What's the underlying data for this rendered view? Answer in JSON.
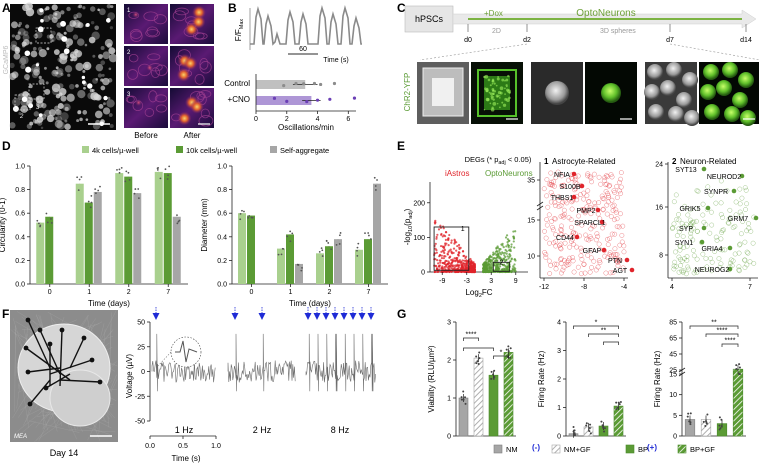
{
  "panels": {
    "A": {
      "letter": "A",
      "side_label": "GCaMP6",
      "roi_labels": [
        "1",
        "2",
        "3"
      ],
      "tile_numbers": [
        "1",
        "2",
        "3"
      ],
      "before_label": "Before",
      "after_label": "After"
    },
    "B": {
      "letter": "B",
      "ylabel": "F/F",
      "ylabel_sub": "Max",
      "time_tick": "60",
      "time_label": "Time (s)",
      "groups": [
        "Control",
        "+CNO"
      ],
      "group_means": [
        3.2,
        3.6
      ],
      "group_errors": [
        0.8,
        0.6
      ],
      "xticks": [
        "0",
        "2",
        "4",
        "6"
      ],
      "xlabel": "Oscillations/min",
      "colors": {
        "control": "#8c8c8c",
        "cno": "#6b3fb5",
        "trace": "#888888"
      }
    },
    "C": {
      "letter": "C",
      "timeline_start": "hPSCs",
      "dox": "+Dox",
      "title": "OptoNeurons",
      "phase_2d": "2D",
      "phase_3d": "3D spheres",
      "days": [
        "d0",
        "d2",
        "d7",
        "d14"
      ],
      "side_label": "ChR2-YFP",
      "accent": "#7cb342"
    },
    "D": {
      "letter": "D",
      "legend": [
        "4k cells/µ-well",
        "10k cells/µ-well",
        "Self-aggregate"
      ],
      "colors": [
        "#a9d08e",
        "#5b9b35",
        "#a6a6a6"
      ],
      "xlabel": "Time (days)",
      "days": [
        "0",
        "1",
        "2",
        "7"
      ]
    },
    "E": {
      "letter": "E",
      "title": "DEGs (* p",
      "title_sub": "adj",
      "title_end": " < 0.05)",
      "ylabel": "-log",
      "ylabel_sub": "10",
      "ylabel_end": "(p",
      "ylabel_sub2": "adj",
      "ylabel_end2": ")",
      "xlabel": "Log",
      "xlabel_sub": "2",
      "xlabel_end": "FC",
      "group_left": "iAstros",
      "group_right": "OptoNeurons",
      "xticks": [
        "-9",
        "-3",
        "3",
        "9"
      ],
      "yticks": [
        "0",
        "100",
        "200"
      ],
      "box_labels": [
        "1",
        "2"
      ],
      "astro_title": "Astrocyte-Related",
      "astro_num": "1",
      "astro_genes": [
        "NFIA",
        "S100B",
        "THBS1",
        "PMP2",
        "SPARCL1",
        "CD44",
        "GFAP",
        "PTN",
        "AGT"
      ],
      "astro_xticks": [
        "-12",
        "-8",
        "-4"
      ],
      "astro_yticks": [
        "10",
        "15",
        "35"
      ],
      "neuro_title": "Neuron-Related",
      "neuro_num": "2",
      "neuro_genes": [
        "SYT13",
        "NEUROD2",
        "SYNPR",
        "GRIK5",
        "GRM7",
        "SYP",
        "SYN1",
        "GRIA4",
        "NEUROG2"
      ],
      "neuro_xticks": [
        "4",
        "7"
      ],
      "neuro_yticks": [
        "8",
        "16",
        "24"
      ],
      "colors": {
        "astro": "#e0242b",
        "neuro": "#5b9b35"
      }
    },
    "F": {
      "letter": "F",
      "mea_label": "MEA",
      "day_label": "Day 14",
      "ylabel": "Voltage (µV)",
      "yticks": [
        "-50",
        "-25",
        "0",
        "25",
        "50"
      ],
      "time_ticks": [
        "0.0",
        "0.5",
        "1.0"
      ],
      "time_label": "Time (s)",
      "rates": [
        "1 Hz",
        "2 Hz",
        "8 Hz"
      ],
      "stim_color": "#1f2bd6"
    },
    "G": {
      "letter": "G",
      "viability": {
        "ylabel": "Viability (RLU/µm²)",
        "yticks": [
          "0",
          "1",
          "2",
          "3"
        ],
        "sig": [
          "****",
          "*"
        ]
      },
      "firing_minus": {
        "ylabel": "Firing Rate (Hz)",
        "sign": "(-)",
        "yticks": [
          "0",
          "1",
          "2",
          "3",
          "4"
        ],
        "sig": [
          "*",
          "**"
        ]
      },
      "firing_plus": {
        "ylabel": "Firing Rate (Hz)",
        "sign": "(+)",
        "yticks": [
          "0",
          "5",
          "10",
          "15",
          "25",
          "45",
          "65",
          "85"
        ],
        "sig": [
          "**",
          "****",
          "****"
        ]
      },
      "legend": [
        "NM",
        "NM+GF",
        "BP",
        "BP+GF"
      ]
    }
  },
  "chart_data": [
    {
      "type": "line",
      "id": "B-trace",
      "xlabel": "Time (s)",
      "ylabel": "F/F Max",
      "x_ticks": [
        "60"
      ]
    },
    {
      "type": "bar",
      "id": "B-oscillations",
      "categories": [
        "Control",
        "+CNO"
      ],
      "values": [
        3.2,
        3.6
      ],
      "errors": [
        0.8,
        0.6
      ],
      "xlabel": "Oscillations/min",
      "xlim": [
        0,
        6.5
      ]
    },
    {
      "type": "bar",
      "id": "D-circularity",
      "ylabel": "Circularity (0-1)",
      "xlabel": "Time (days)",
      "ylim": [
        0,
        1.0
      ],
      "categories": [
        "0",
        "1",
        "2",
        "7"
      ],
      "series": [
        {
          "name": "4k cells/µ-well",
          "values": [
            0.52,
            0.85,
            0.94,
            0.95
          ]
        },
        {
          "name": "10k cells/µ-well",
          "values": [
            0.57,
            0.69,
            0.91,
            0.94
          ]
        },
        {
          "name": "Self-aggregate",
          "values": [
            null,
            0.78,
            0.77,
            0.57
          ]
        }
      ]
    },
    {
      "type": "bar",
      "id": "D-diameter",
      "ylabel": "Diameter (mm)",
      "xlabel": "Time (days)",
      "ylim": [
        0,
        1.0
      ],
      "categories": [
        "0",
        "1",
        "2",
        "7"
      ],
      "series": [
        {
          "name": "4k cells/µ-well",
          "values": [
            0.6,
            0.3,
            0.26,
            0.29
          ]
        },
        {
          "name": "10k cells/µ-well",
          "values": [
            0.58,
            0.42,
            0.32,
            0.38
          ]
        },
        {
          "name": "Self-aggregate",
          "values": [
            null,
            0.17,
            0.38,
            0.85
          ]
        }
      ]
    },
    {
      "type": "scatter",
      "id": "E-volcano",
      "xlabel": "Log2FC",
      "ylabel": "-log10(padj)",
      "xlim": [
        -12,
        12
      ],
      "ylim": [
        0,
        260
      ]
    },
    {
      "type": "bar",
      "id": "G-viability",
      "ylabel": "Viability (RLU/µm²)",
      "categories": [
        "NM",
        "NM+GF",
        "BP",
        "BP+GF"
      ],
      "values": [
        1.0,
        2.05,
        1.6,
        2.2
      ],
      "ylim": [
        0,
        3
      ]
    },
    {
      "type": "bar",
      "id": "G-firing-minus",
      "ylabel": "(-) Firing Rate (Hz)",
      "categories": [
        "NM",
        "NM+GF",
        "BP",
        "BP+GF"
      ],
      "values": [
        0.08,
        0.32,
        0.35,
        1.05
      ],
      "ylim": [
        0,
        4
      ]
    },
    {
      "type": "bar",
      "id": "G-firing-plus",
      "ylabel": "(+) Firing Rate (Hz)",
      "categories": [
        "NM",
        "NM+GF",
        "BP",
        "BP+GF"
      ],
      "values": [
        4,
        4,
        3,
        26
      ],
      "ylim": [
        0,
        85
      ]
    }
  ]
}
